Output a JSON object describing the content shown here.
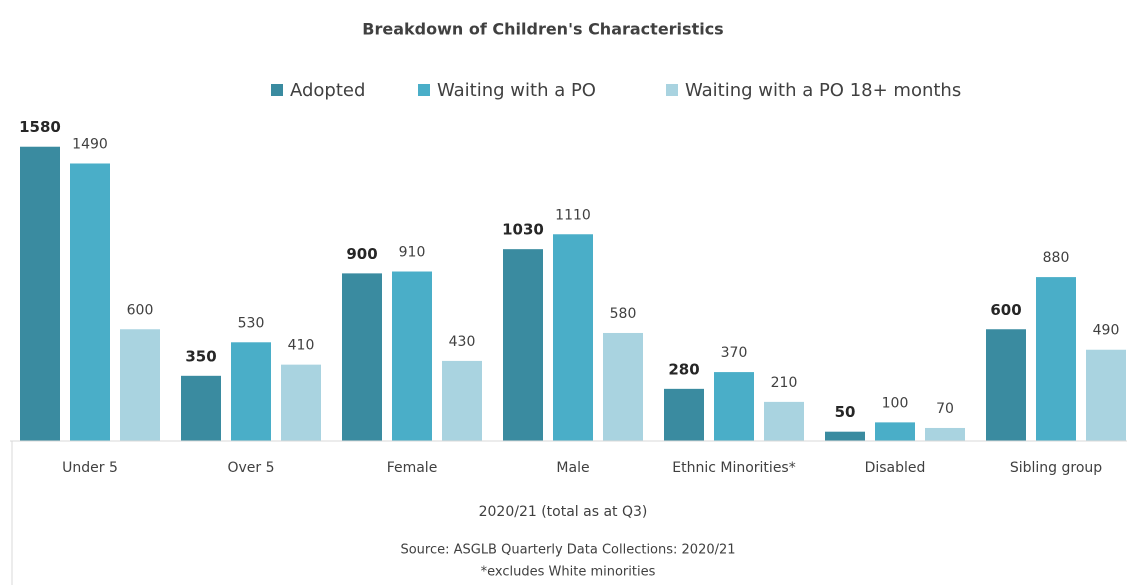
{
  "chart_data": {
    "type": "bar",
    "title": "Breakdown of Children's Characteristics",
    "categories": [
      "Under 5",
      "Over 5",
      "Female",
      "Male",
      "Ethnic Minorities*",
      "Disabled",
      "Sibling group"
    ],
    "series": [
      {
        "name": "Adopted",
        "color": "#3a8ba0",
        "values": [
          1580,
          350,
          900,
          1030,
          280,
          50,
          600
        ]
      },
      {
        "name": "Waiting with a PO",
        "color": "#4aaec8",
        "values": [
          1490,
          530,
          910,
          1110,
          370,
          100,
          880
        ]
      },
      {
        "name": "Waiting with a PO 18+ months",
        "color": "#a9d3e0",
        "values": [
          600,
          410,
          430,
          580,
          210,
          70,
          490
        ]
      }
    ],
    "ylim": [
      0,
      1600
    ],
    "x_label": "2020/21 (total as at Q3)",
    "source": "Source: ASGLB Quarterly Data Collections: 2020/21",
    "footnote": "*excludes White minorities",
    "legend": "top"
  }
}
